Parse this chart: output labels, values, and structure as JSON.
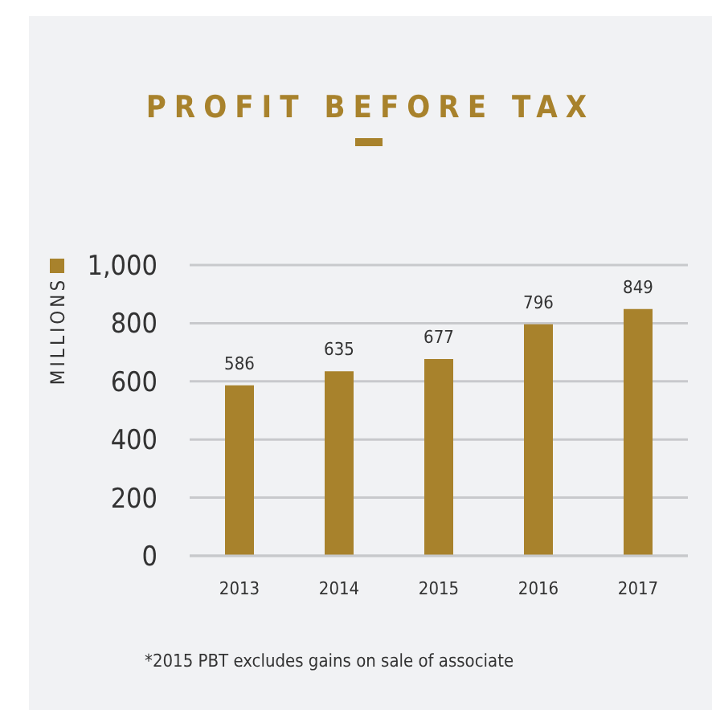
{
  "chart_data": {
    "type": "bar",
    "title": "PROFIT BEFORE TAX",
    "ylabel": "MILLIONS",
    "categories": [
      "2013",
      "2014",
      "2015",
      "2016",
      "2017"
    ],
    "values": [
      586,
      635,
      677,
      796,
      849
    ],
    "color": "#a8822c",
    "ylim": [
      0,
      1000
    ],
    "yticks": [
      0,
      200,
      400,
      600,
      800,
      {
        "value": 1000,
        "label": "1,000"
      }
    ],
    "grid": "y",
    "data_labels": true,
    "annotations": [
      "*2015 PBT excludes gains on sale of associate"
    ]
  }
}
